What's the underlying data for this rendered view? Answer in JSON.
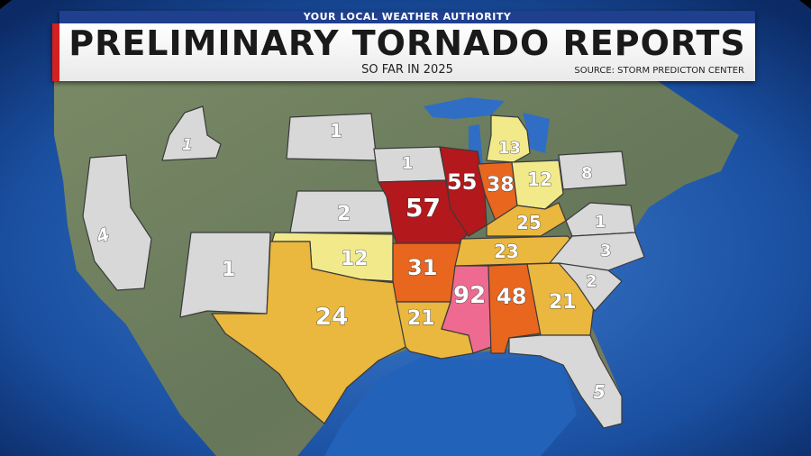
{
  "header": {
    "top_strip": "YOUR LOCAL WEATHER AUTHORITY",
    "title": "PRELIMINARY TORNADO REPORTS",
    "subtitle": "SO FAR IN 2025",
    "source": "SOURCE: STORM PREDICTON CENTER"
  },
  "colors": {
    "ocean_deep": "#1a4fa0",
    "ocean_light": "#3f7ed0",
    "land": "#6e7e5e",
    "gray_state": "#d8d8d8",
    "yellow_light": "#f2ea8a",
    "yellow_gold": "#eab73f",
    "orange": "#e8661e",
    "red_dark": "#b3181c",
    "pink": "#ef6a90",
    "banner_blue": "#1f3f8f",
    "banner_red": "#d32020"
  },
  "states": [
    {
      "id": "california",
      "value": "4"
    },
    {
      "id": "idaho",
      "value": "1"
    },
    {
      "id": "new-mexico",
      "value": "1"
    },
    {
      "id": "south-dakota",
      "value": "1"
    },
    {
      "id": "kansas",
      "value": "2"
    },
    {
      "id": "oklahoma",
      "value": "12"
    },
    {
      "id": "texas",
      "value": "24"
    },
    {
      "id": "iowa",
      "value": "1"
    },
    {
      "id": "missouri",
      "value": "57"
    },
    {
      "id": "arkansas",
      "value": "31"
    },
    {
      "id": "louisiana",
      "value": "21"
    },
    {
      "id": "illinois",
      "value": "55"
    },
    {
      "id": "indiana",
      "value": "38"
    },
    {
      "id": "michigan",
      "value": "13"
    },
    {
      "id": "ohio",
      "value": "12"
    },
    {
      "id": "pennsylvania",
      "value": "8"
    },
    {
      "id": "kentucky",
      "value": "25"
    },
    {
      "id": "tennessee",
      "value": "23"
    },
    {
      "id": "mississippi",
      "value": "92"
    },
    {
      "id": "alabama",
      "value": "48"
    },
    {
      "id": "georgia",
      "value": "21"
    },
    {
      "id": "virginia",
      "value": "1"
    },
    {
      "id": "north-carolina",
      "value": "3"
    },
    {
      "id": "south-carolina",
      "value": "2"
    },
    {
      "id": "florida",
      "value": "5"
    }
  ]
}
